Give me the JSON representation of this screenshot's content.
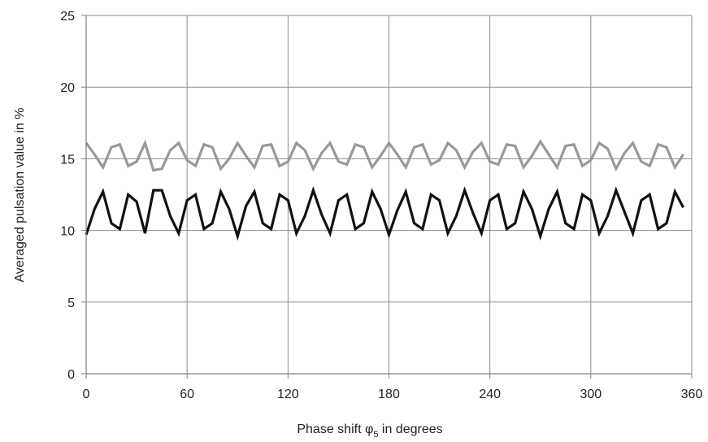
{
  "chart_data": {
    "type": "line",
    "title": "",
    "xlabel": "Phase shift φ",
    "xlabel_subscript": "5",
    "xlabel_suffix": " in degrees",
    "ylabel": "Averaged pulsation value in %",
    "xlim": [
      0,
      360
    ],
    "ylim": [
      0,
      25
    ],
    "x_ticks": [
      0,
      60,
      120,
      180,
      240,
      300,
      360
    ],
    "y_ticks": [
      0,
      5,
      10,
      15,
      20,
      25
    ],
    "grid": true,
    "legend": "none",
    "x": [
      0,
      5,
      10,
      15,
      20,
      25,
      30,
      35,
      40,
      45,
      50,
      55,
      60,
      65,
      70,
      75,
      80,
      85,
      90,
      95,
      100,
      105,
      110,
      115,
      120,
      125,
      130,
      135,
      140,
      145,
      150,
      155,
      160,
      165,
      170,
      175,
      180,
      185,
      190,
      195,
      200,
      205,
      210,
      215,
      220,
      225,
      230,
      235,
      240,
      245,
      250,
      255,
      260,
      265,
      270,
      275,
      280,
      285,
      290,
      295,
      300,
      305,
      310,
      315,
      320,
      325,
      330,
      335,
      340,
      345,
      350,
      355
    ],
    "series": [
      {
        "color": "#999999",
        "values": [
          16.1,
          15.3,
          14.4,
          15.8,
          16.0,
          14.5,
          14.8,
          16.1,
          14.2,
          14.3,
          15.6,
          16.1,
          14.9,
          14.5,
          16.0,
          15.8,
          14.3,
          15.0,
          16.1,
          15.2,
          14.4,
          15.9,
          16.0,
          14.5,
          14.8,
          16.1,
          15.6,
          14.3,
          15.4,
          16.1,
          14.8,
          14.6,
          16.0,
          15.8,
          14.4,
          15.2,
          16.1,
          15.3,
          14.4,
          15.8,
          16.0,
          14.6,
          14.9,
          16.1,
          15.6,
          14.4,
          15.5,
          16.1,
          14.8,
          14.6,
          16.0,
          15.9,
          14.4,
          15.2,
          16.2,
          15.3,
          14.4,
          15.9,
          16.0,
          14.5,
          14.9,
          16.1,
          15.7,
          14.3,
          15.4,
          16.1,
          14.8,
          14.5,
          16.0,
          15.8,
          14.4,
          15.3
        ]
      },
      {
        "color": "#111111",
        "values": [
          9.7,
          11.5,
          12.7,
          10.5,
          10.1,
          12.5,
          12.0,
          9.8,
          12.8,
          12.8,
          11.0,
          9.8,
          12.1,
          12.5,
          10.1,
          10.5,
          12.7,
          11.5,
          9.6,
          11.7,
          12.7,
          10.5,
          10.1,
          12.5,
          12.1,
          9.8,
          11.0,
          12.8,
          11.1,
          9.8,
          12.1,
          12.5,
          10.1,
          10.5,
          12.7,
          11.5,
          9.7,
          11.4,
          12.7,
          10.5,
          10.1,
          12.5,
          12.1,
          9.8,
          11.0,
          12.8,
          11.2,
          9.8,
          12.1,
          12.5,
          10.1,
          10.5,
          12.7,
          11.5,
          9.6,
          11.5,
          12.7,
          10.5,
          10.1,
          12.5,
          12.1,
          9.8,
          11.0,
          12.8,
          11.3,
          9.8,
          12.1,
          12.5,
          10.1,
          10.5,
          12.7,
          11.6
        ]
      }
    ]
  }
}
